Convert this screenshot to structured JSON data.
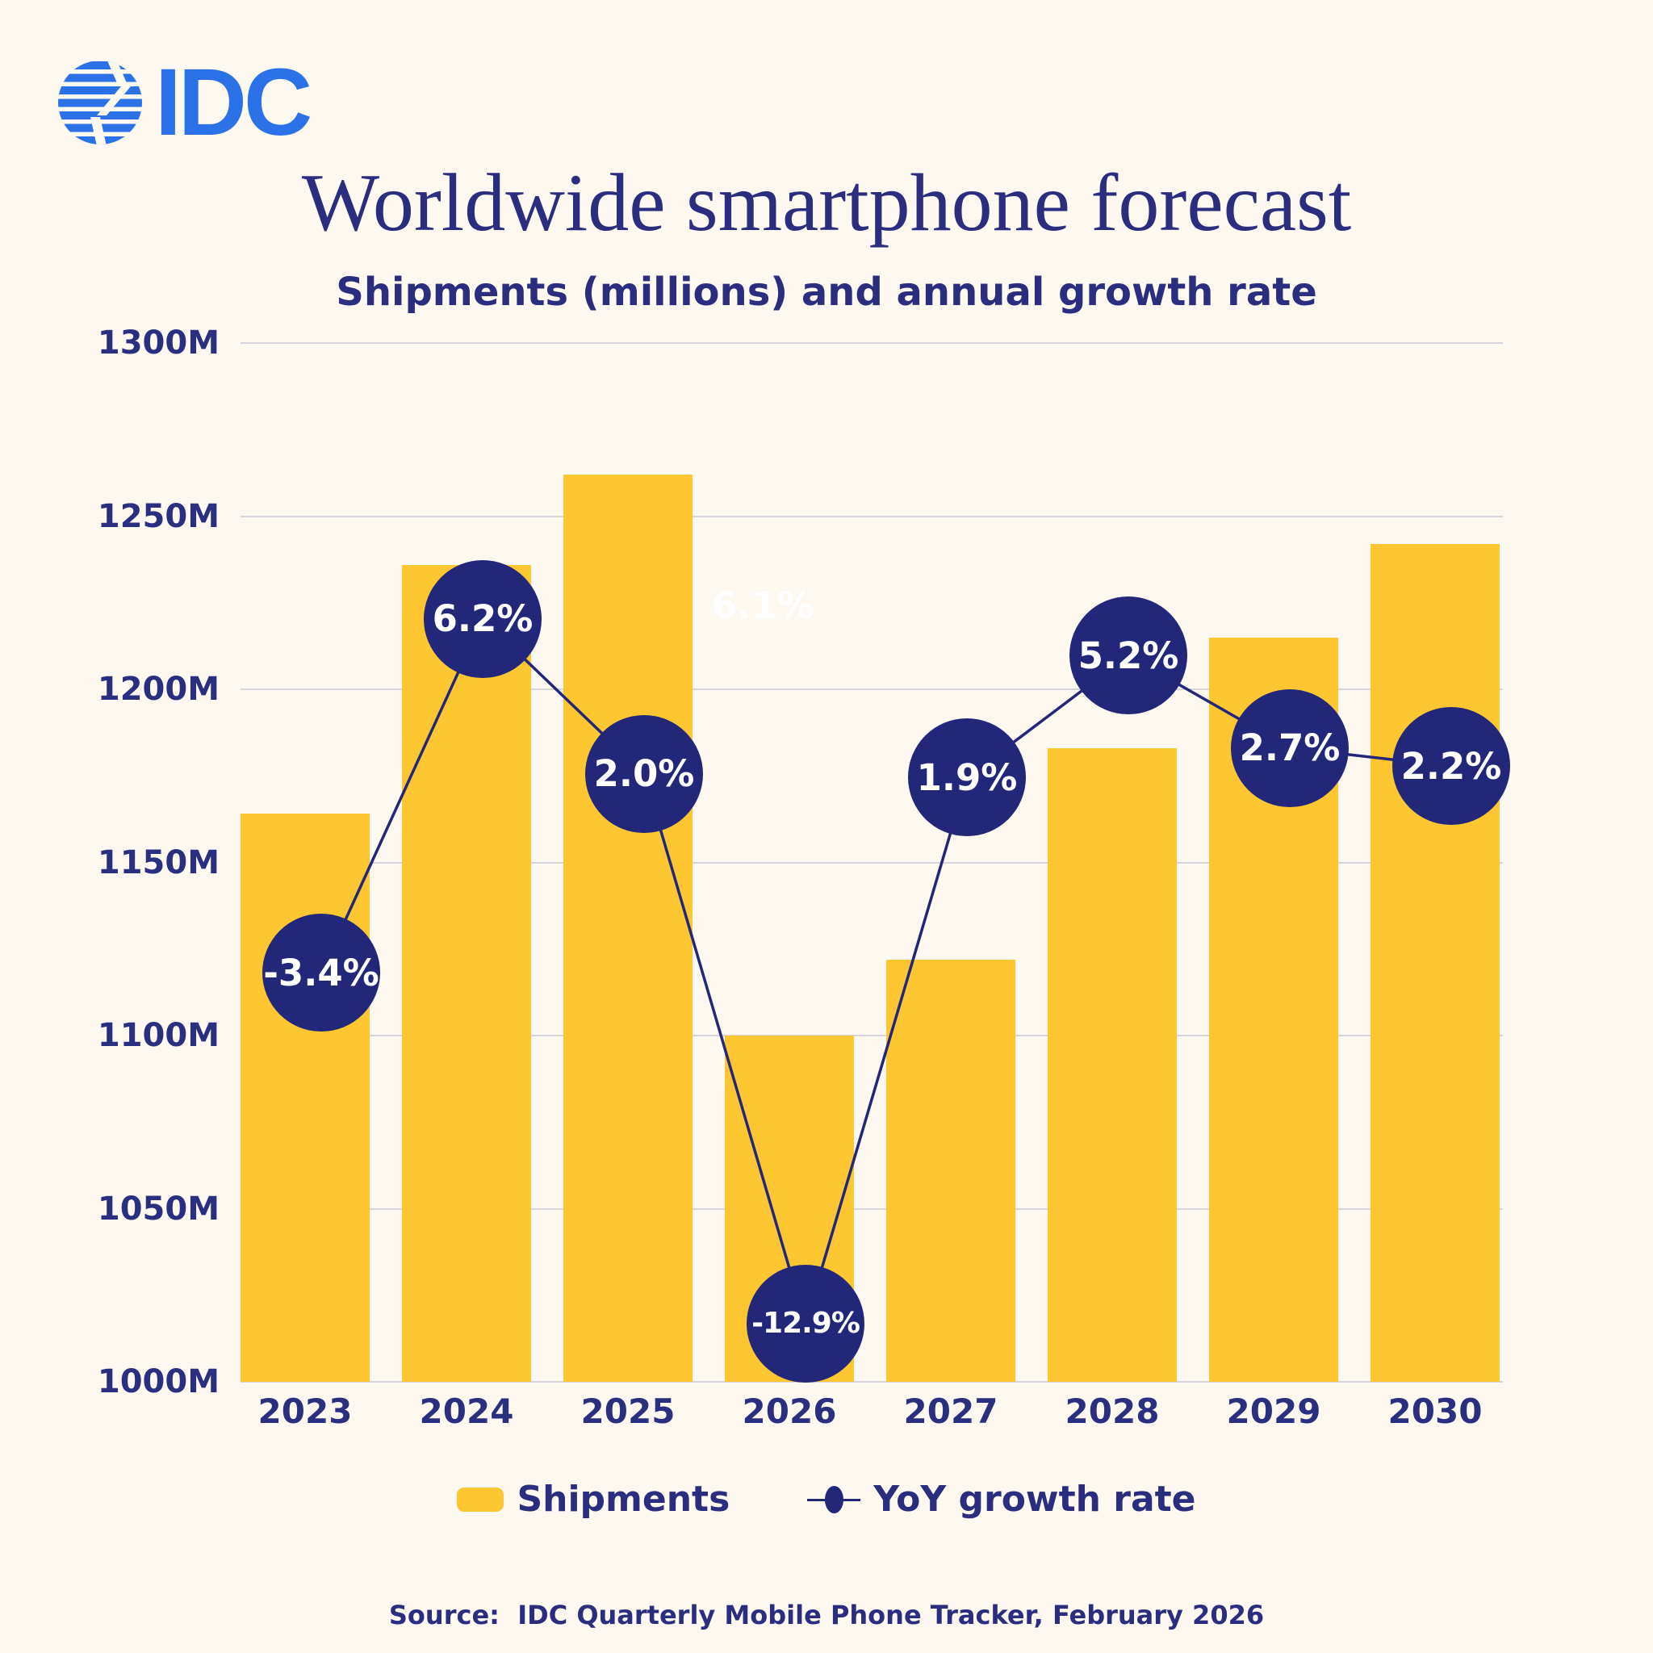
{
  "brand": {
    "logo_text": "IDC"
  },
  "header": {
    "title": "Worldwide smartphone forecast",
    "subtitle": "Shipments (millions) and annual growth rate"
  },
  "chart_data": {
    "type": "combo",
    "categories": [
      "2023",
      "2024",
      "2025",
      "2026",
      "2027",
      "2028",
      "2029",
      "2030"
    ],
    "series": [
      {
        "name": "Shipments",
        "type": "bar",
        "unit": "millions",
        "values": [
          1164,
          1236,
          1262,
          1100,
          1122,
          1183,
          1215,
          1242
        ]
      },
      {
        "name": "YoY growth rate",
        "type": "line",
        "unit": "%",
        "values": [
          -3.4,
          6.2,
          2.0,
          -12.9,
          1.9,
          5.2,
          2.7,
          2.2
        ],
        "labels": [
          "-3.4%",
          "6.2%",
          "2.0%",
          "-12.9%",
          "1.9%",
          "5.2%",
          "2.7%",
          "2.2%"
        ]
      }
    ],
    "title": "Worldwide smartphone forecast",
    "subtitle": "Shipments (millions) and annual growth rate",
    "y_axis": {
      "ticks": [
        "1300M",
        "1250M",
        "1200M",
        "1150M",
        "1100M",
        "1050M",
        "1000M"
      ],
      "min": 1000,
      "max": 1300,
      "unit": "M"
    },
    "grid": true,
    "legend_position": "bottom",
    "ghost_label": "6.1%"
  },
  "legend": {
    "items": [
      {
        "label": "Shipments",
        "swatch": "bar"
      },
      {
        "label": "YoY growth rate",
        "swatch": "line-dot"
      }
    ]
  },
  "footer": {
    "source": "Source:  IDC Quarterly Mobile Phone Tracker, February 2026"
  },
  "colors": {
    "background": "#FDF8F0",
    "bar": "#FEC732",
    "navy": "#23277A",
    "text": "#2B2F7F",
    "logo_blue": "#2B72E8",
    "gridline": "#D6D5DE",
    "ghost": "#FFFFFF"
  }
}
